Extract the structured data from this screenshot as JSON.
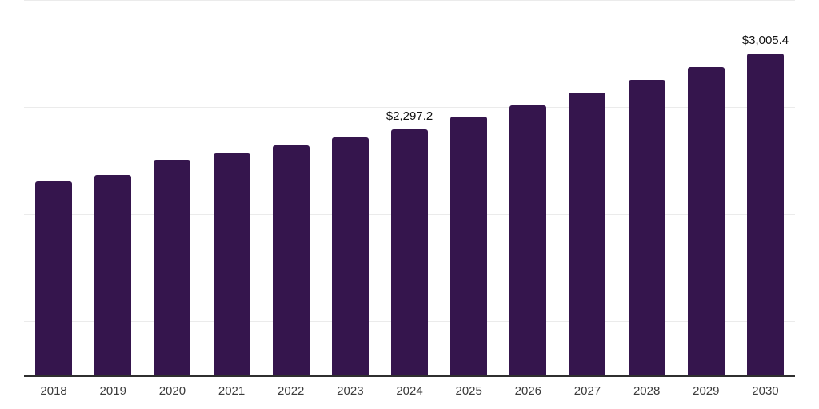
{
  "chart_data": {
    "type": "bar",
    "categories": [
      "2018",
      "2019",
      "2020",
      "2021",
      "2022",
      "2023",
      "2024",
      "2025",
      "2026",
      "2027",
      "2028",
      "2029",
      "2030"
    ],
    "values": [
      1817,
      1872,
      2012,
      2078,
      2146,
      2227,
      2297.2,
      2415,
      2523,
      2644,
      2763,
      2884,
      3005.4
    ],
    "data_labels": [
      "",
      "",
      "",
      "",
      "",
      "",
      "$2,297.2",
      "",
      "",
      "",
      "",
      "",
      "$3,005.4"
    ],
    "title": "",
    "xlabel": "",
    "ylabel": "",
    "ylim": [
      0,
      3500
    ],
    "gridline_step": 500,
    "grid": "horizontal-only",
    "y_axis_tick_labels_shown": false,
    "legend": "none",
    "colors": {
      "bar": "#35154d",
      "gridline": "#ebebeb",
      "axis_line": "#2f2f2f",
      "tick_label": "#3b3b3b",
      "value_label": "#111111",
      "background": "#ffffff"
    }
  }
}
